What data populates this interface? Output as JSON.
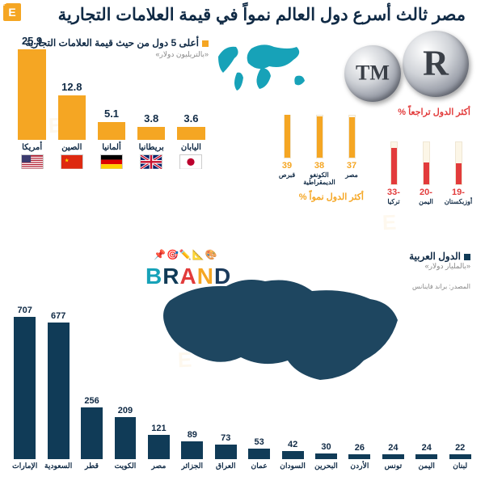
{
  "colors": {
    "navy": "#102a45",
    "navy_bar": "#103b57",
    "amber": "#f5a623",
    "teal": "#17a2b8",
    "red_decline": "#e23b3b",
    "gray_text": "#888888",
    "bg": "#ffffff"
  },
  "logo": "E",
  "headline": "مصر ثالث أسرع دول العالم نمواً في قيمة العلامات التجارية",
  "top5": {
    "title": "أعلى 5 دول من حيث قيمة العلامات التجارية",
    "subtitle": "«بالتريليون دولار»",
    "type": "bar",
    "max": 25.9,
    "bar_color": "#f5a623",
    "value_fontsize": 13,
    "label_fontsize": 10,
    "items": [
      {
        "country": "أمريكا",
        "value": 25.9,
        "flag": "us"
      },
      {
        "country": "الصين",
        "value": 12.8,
        "flag": "cn"
      },
      {
        "country": "ألمانيا",
        "value": 5.1,
        "flag": "de"
      },
      {
        "country": "بريطانيا",
        "value": 3.8,
        "flag": "uk"
      },
      {
        "country": "اليابان",
        "value": 3.6,
        "flag": "jp"
      }
    ]
  },
  "growth": {
    "title": "أكثر الدول نمواً",
    "pct_label": "%",
    "color": "#f5a623",
    "track_h": 54,
    "max": 40,
    "items": [
      {
        "label": "مصر",
        "value": 37
      },
      {
        "label": "الكونغو الديمقراطية",
        "value": 38
      },
      {
        "label": "قبرص",
        "value": 39
      }
    ]
  },
  "decline": {
    "title": "أكثر الدول تراجعاً",
    "pct_label": "%",
    "color": "#e23b3b",
    "track_h": 54,
    "max": 40,
    "items": [
      {
        "label": "أوزبكستان",
        "value": 19,
        "display": "-19"
      },
      {
        "label": "اليمن",
        "value": 20,
        "display": "-20"
      },
      {
        "label": "تركيا",
        "value": 33,
        "display": "-33"
      }
    ]
  },
  "arab": {
    "title": "الدول العربية",
    "subtitle": "«بالمليار دولار»",
    "type": "bar",
    "bar_color": "#103b57",
    "max": 707,
    "items": [
      {
        "country": "الإمارات",
        "value": 707
      },
      {
        "country": "السعودية",
        "value": 677
      },
      {
        "country": "قطر",
        "value": 256
      },
      {
        "country": "الكويت",
        "value": 209
      },
      {
        "country": "مصر",
        "value": 121
      },
      {
        "country": "الجزائر",
        "value": 89
      },
      {
        "country": "العراق",
        "value": 73
      },
      {
        "country": "عمان",
        "value": 53
      },
      {
        "country": "السودان",
        "value": 42
      },
      {
        "country": "البحرين",
        "value": 30
      },
      {
        "country": "الأردن",
        "value": 26
      },
      {
        "country": "تونس",
        "value": 24
      },
      {
        "country": "اليمن",
        "value": 24
      },
      {
        "country": "لبنان",
        "value": 22
      }
    ]
  },
  "source": "المصدر: براند فاينانس",
  "tmr": {
    "tm": "TM",
    "r": "R"
  },
  "brand_word": "BRAND"
}
